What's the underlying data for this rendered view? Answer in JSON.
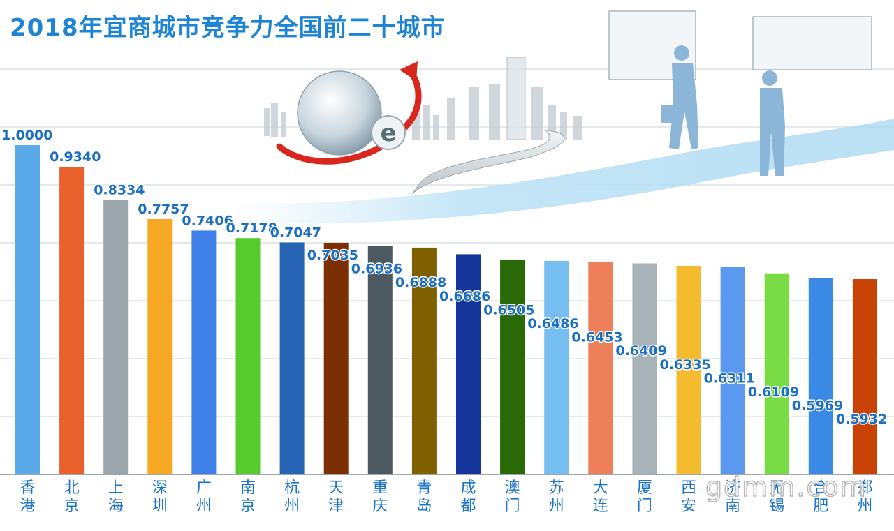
{
  "title": "2018年宜商城市竞争力全国前二十城市",
  "watermark": "gdmm.com",
  "chart_data": {
    "type": "bar",
    "title": "2018年宜商城市竞争力全国前二十城市",
    "xlabel": "",
    "ylabel": "",
    "ylim": [
      0,
      1.1
    ],
    "grid": true,
    "legend": "none",
    "categories": [
      "香港",
      "北京",
      "上海",
      "深圳",
      "广州",
      "南京",
      "杭州",
      "天津",
      "重庆",
      "青岛",
      "成都",
      "澳门",
      "苏州",
      "大连",
      "厦门",
      "西安",
      "济南",
      "无锡",
      "合肥",
      "郑州"
    ],
    "values": [
      1.0,
      0.934,
      0.8334,
      0.7757,
      0.7406,
      0.7178,
      0.7047,
      0.7035,
      0.6936,
      0.6888,
      0.6686,
      0.6505,
      0.6486,
      0.6453,
      0.6409,
      0.6335,
      0.6311,
      0.6109,
      0.5969,
      0.5932
    ],
    "labels": [
      "1.0000",
      "0.9340",
      "0.8334",
      "0.7757",
      "0.7406",
      "0.7178",
      "0.7047",
      "0.7035",
      "0.6936",
      "0.6888",
      "0.6686",
      "0.6505",
      "0.6486",
      "0.6453",
      "0.6409",
      "0.6335",
      "0.6311",
      "0.6109",
      "0.5969",
      "0.5932"
    ],
    "colors": [
      "#5aaaea",
      "#e8612c",
      "#9aa6ab",
      "#f6a723",
      "#3f7fe8",
      "#56cc2c",
      "#2663b5",
      "#7c2e05",
      "#4c5961",
      "#7f6000",
      "#16359a",
      "#2a6a06",
      "#76bdf0",
      "#ed7f5b",
      "#a8b3b9",
      "#f4bb2e",
      "#5b98f0",
      "#79dc45",
      "#3a8ae5",
      "#c94306"
    ]
  }
}
